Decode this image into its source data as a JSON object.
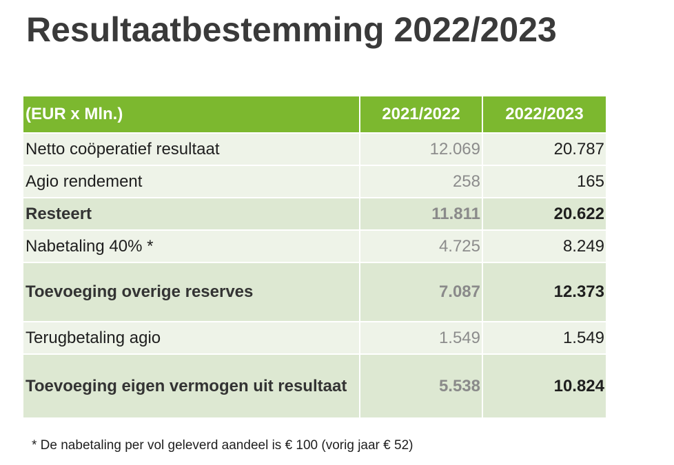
{
  "title": "Resultaatbestemming 2022/2023",
  "table": {
    "headers": {
      "label": "(EUR x Mln.)",
      "prev": "2021/2022",
      "curr": "2022/2023"
    },
    "rows": [
      {
        "label": "Netto coöperatief resultaat",
        "prev": "12.069",
        "curr": "20.787",
        "bold": false
      },
      {
        "label": "Agio rendement",
        "prev": "258",
        "curr": "165",
        "bold": false
      },
      {
        "label": "Resteert",
        "prev": "11.811",
        "curr": "20.622",
        "bold": true
      },
      {
        "label": "Nabetaling 40% *",
        "prev": "4.725",
        "curr": "8.249",
        "bold": false
      },
      {
        "label": "Toevoeging overige reserves",
        "prev": "7.087",
        "curr": "12.373",
        "bold": true
      },
      {
        "label": "Terugbetaling agio",
        "prev": "1.549",
        "curr": "1.549",
        "bold": false
      },
      {
        "label": "Toevoeging eigen vermogen uit resultaat",
        "prev": "5.538",
        "curr": "10.824",
        "bold": true
      }
    ]
  },
  "footnote": "* De nabetaling per vol geleverd aandeel is € 100 (vorig jaar € 52)",
  "colors": {
    "header_green": "#7cb82f",
    "row_light": "#eef3e8",
    "row_dark": "#dde8d2",
    "title_text": "#3a3a3a"
  }
}
